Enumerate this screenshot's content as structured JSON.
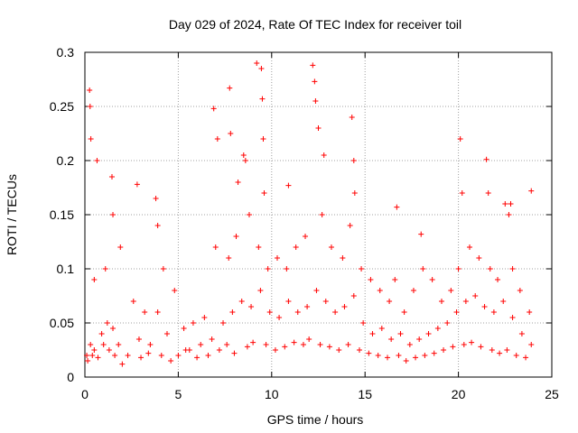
{
  "chart_data": {
    "type": "scatter",
    "title": "Day 029 of 2024, Rate Of TEC Index for receiver toil",
    "xlabel": "GPS time / hours",
    "ylabel": "ROTI / TECUs",
    "xlim": [
      0,
      25
    ],
    "ylim": [
      0,
      0.3
    ],
    "x_ticks": [
      "0",
      "5",
      "10",
      "15",
      "20",
      "25"
    ],
    "y_ticks": [
      "0",
      "0.05",
      "0.1",
      "0.15",
      "0.2",
      "0.25",
      "0.3"
    ],
    "grid": true,
    "marker": "plus",
    "color": "#ff0000",
    "series": [
      {
        "name": "ROTI",
        "x": [
          0.1,
          0.3,
          0.5,
          0.9,
          1.2,
          1.5,
          1.8,
          2.3,
          2.9,
          3.5,
          3.9,
          4.4,
          5.0,
          5.6,
          6.2,
          6.8,
          7.4,
          7.9,
          8.4,
          8.9,
          9.4,
          9.9,
          10.4,
          10.9,
          11.4,
          11.9,
          12.4,
          12.9,
          13.4,
          13.9,
          14.4,
          14.9,
          15.4,
          15.9,
          16.4,
          16.9,
          17.4,
          17.9,
          18.4,
          18.9,
          19.4,
          19.9,
          20.4,
          20.9,
          21.4,
          21.9,
          22.4,
          22.9,
          23.4,
          23.9,
          0.25,
          0.28,
          0.32,
          0.65,
          1.45,
          1.5,
          2.8,
          3.8,
          3.9,
          6.9,
          7.1,
          7.75,
          7.8,
          8.2,
          8.5,
          8.6,
          9.2,
          9.45,
          9.5,
          9.55,
          9.6,
          10.9,
          12.2,
          12.3,
          12.35,
          12.5,
          12.8,
          14.3,
          14.4,
          14.45,
          16.7,
          18.0,
          20.1,
          20.2,
          21.5,
          21.6,
          22.5,
          22.7,
          22.8,
          23.9,
          0.15,
          0.4,
          0.7,
          1.0,
          1.3,
          1.6,
          2.0,
          3.0,
          3.4,
          4.1,
          4.6,
          5.4,
          6.0,
          6.6,
          7.2,
          7.6,
          8.0,
          8.7,
          9.0,
          9.7,
          10.2,
          10.7,
          11.2,
          11.7,
          12.0,
          12.6,
          13.1,
          13.6,
          14.1,
          14.7,
          15.2,
          15.7,
          16.2,
          16.8,
          17.2,
          17.7,
          18.2,
          18.7,
          19.2,
          19.7,
          20.3,
          20.7,
          21.2,
          21.8,
          22.2,
          22.6,
          23.1,
          23.6,
          0.5,
          1.1,
          1.9,
          2.6,
          3.2,
          4.2,
          4.8,
          5.3,
          5.8,
          6.4,
          7.0,
          7.7,
          8.1,
          8.8,
          9.3,
          9.8,
          10.3,
          10.8,
          11.3,
          11.8,
          12.7,
          13.2,
          13.8,
          14.2,
          14.8,
          15.3,
          15.8,
          16.3,
          16.6,
          17.1,
          17.6,
          18.1,
          18.6,
          19.1,
          19.6,
          20.0,
          20.6,
          21.1,
          21.7,
          22.1,
          22.9,
          23.3,
          23.8
        ],
        "y": [
          0.02,
          0.03,
          0.025,
          0.04,
          0.05,
          0.045,
          0.03,
          0.02,
          0.035,
          0.03,
          0.06,
          0.04,
          0.02,
          0.025,
          0.03,
          0.035,
          0.05,
          0.06,
          0.07,
          0.065,
          0.08,
          0.06,
          0.055,
          0.07,
          0.06,
          0.065,
          0.08,
          0.07,
          0.06,
          0.065,
          0.075,
          0.05,
          0.04,
          0.045,
          0.035,
          0.04,
          0.03,
          0.035,
          0.04,
          0.045,
          0.05,
          0.06,
          0.07,
          0.075,
          0.065,
          0.06,
          0.07,
          0.055,
          0.04,
          0.03,
          0.265,
          0.25,
          0.22,
          0.2,
          0.185,
          0.15,
          0.178,
          0.165,
          0.14,
          0.248,
          0.22,
          0.267,
          0.225,
          0.18,
          0.205,
          0.2,
          0.29,
          0.285,
          0.257,
          0.22,
          0.17,
          0.177,
          0.288,
          0.273,
          0.255,
          0.23,
          0.205,
          0.24,
          0.2,
          0.17,
          0.157,
          0.132,
          0.22,
          0.17,
          0.201,
          0.17,
          0.16,
          0.15,
          0.16,
          0.172,
          0.015,
          0.02,
          0.018,
          0.03,
          0.025,
          0.02,
          0.012,
          0.018,
          0.022,
          0.02,
          0.015,
          0.025,
          0.018,
          0.02,
          0.025,
          0.03,
          0.022,
          0.028,
          0.032,
          0.03,
          0.025,
          0.028,
          0.032,
          0.03,
          0.035,
          0.03,
          0.028,
          0.025,
          0.03,
          0.025,
          0.022,
          0.02,
          0.018,
          0.02,
          0.015,
          0.018,
          0.02,
          0.022,
          0.025,
          0.028,
          0.03,
          0.032,
          0.028,
          0.025,
          0.022,
          0.025,
          0.02,
          0.018,
          0.09,
          0.1,
          0.12,
          0.07,
          0.06,
          0.1,
          0.08,
          0.045,
          0.05,
          0.055,
          0.12,
          0.11,
          0.13,
          0.15,
          0.12,
          0.1,
          0.11,
          0.1,
          0.12,
          0.13,
          0.15,
          0.12,
          0.11,
          0.14,
          0.1,
          0.09,
          0.08,
          0.07,
          0.09,
          0.06,
          0.08,
          0.1,
          0.09,
          0.07,
          0.08,
          0.1,
          0.12,
          0.11,
          0.1,
          0.09,
          0.1,
          0.08,
          0.06
        ]
      }
    ]
  }
}
